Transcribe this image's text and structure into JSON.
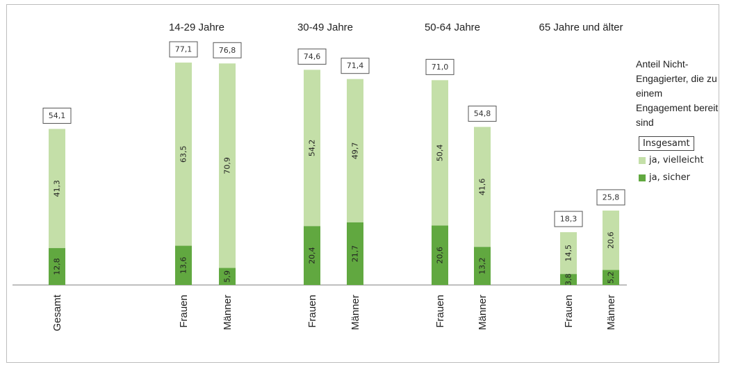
{
  "chart_data": {
    "type": "bar",
    "stacked": true,
    "title": "",
    "xlabel": "",
    "ylabel": "",
    "ylim": [
      0,
      80
    ],
    "grid": false,
    "legend_position": "right",
    "groups": [
      "14-29 Jahre",
      "30-49 Jahre",
      "50-64 Jahre",
      "65 Jahre und älter"
    ],
    "bars": [
      {
        "category": "Gesamt",
        "group": "",
        "sicher": 12.8,
        "vielleicht": 41.3,
        "total": "54,1",
        "sicher_label": "12,8",
        "vielleicht_label": "41,3"
      },
      {
        "category": "Frauen",
        "group": "14-29 Jahre",
        "sicher": 13.6,
        "vielleicht": 63.5,
        "total": "77,1",
        "sicher_label": "13,6",
        "vielleicht_label": "63,5"
      },
      {
        "category": "Männer",
        "group": "14-29 Jahre",
        "sicher": 5.9,
        "vielleicht": 70.9,
        "total": "76,8",
        "sicher_label": "5,9",
        "vielleicht_label": "70,9"
      },
      {
        "category": "Frauen",
        "group": "30-49 Jahre",
        "sicher": 20.4,
        "vielleicht": 54.2,
        "total": "74,6",
        "sicher_label": "20,4",
        "vielleicht_label": "54,2"
      },
      {
        "category": "Männer",
        "group": "30-49 Jahre",
        "sicher": 21.7,
        "vielleicht": 49.7,
        "total": "71,4",
        "sicher_label": "21,7",
        "vielleicht_label": "49,7"
      },
      {
        "category": "Frauen",
        "group": "50-64 Jahre",
        "sicher": 20.6,
        "vielleicht": 50.4,
        "total": "71,0",
        "sicher_label": "20,6",
        "vielleicht_label": "50,4"
      },
      {
        "category": "Männer",
        "group": "50-64 Jahre",
        "sicher": 13.2,
        "vielleicht": 41.6,
        "total": "54,8",
        "sicher_label": "13,2",
        "vielleicht_label": "41,6"
      },
      {
        "category": "Frauen",
        "group": "65 Jahre und älter",
        "sicher": 3.8,
        "vielleicht": 14.5,
        "total": "18,3",
        "sicher_label": "3,8",
        "vielleicht_label": "14,5"
      },
      {
        "category": "Männer",
        "group": "65 Jahre und älter",
        "sicher": 5.2,
        "vielleicht": 20.6,
        "total": "25,8",
        "sicher_label": "5,2",
        "vielleicht_label": "20,6"
      }
    ],
    "legend": {
      "title": "Anteil Nicht-Engagierter, die zu einem Engagement bereit sind",
      "total_label": "Insgesamt",
      "items": [
        {
          "name": "ja, vielleicht",
          "color": "#c4dfa8"
        },
        {
          "name": "ja, sicher",
          "color": "#61a840"
        }
      ]
    },
    "colors": {
      "sicher": "#61a840",
      "vielleicht": "#c4dfa8"
    }
  }
}
